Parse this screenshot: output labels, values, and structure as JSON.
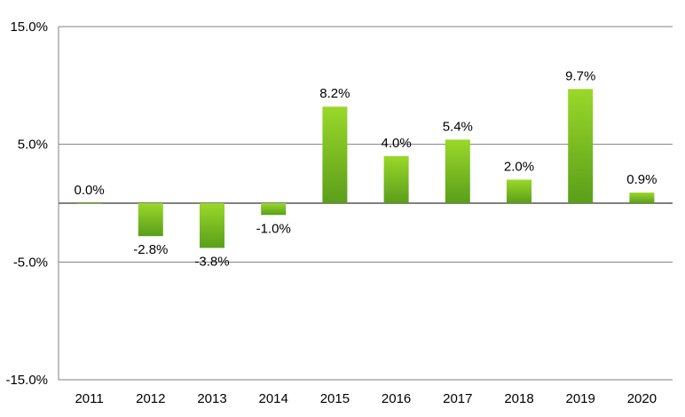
{
  "chart_data": {
    "type": "bar",
    "categories": [
      "2011",
      "2012",
      "2013",
      "2014",
      "2015",
      "2016",
      "2017",
      "2018",
      "2019",
      "2020"
    ],
    "values": [
      0.0,
      -2.8,
      -3.8,
      -1.0,
      8.2,
      4.0,
      5.4,
      2.0,
      9.7,
      0.9
    ],
    "data_labels": [
      "0.0%",
      "-2.8%",
      "-3.8%",
      "-1.0%",
      "8.2%",
      "4.0%",
      "5.4%",
      "2.0%",
      "9.7%",
      "0.9%"
    ],
    "y_ticks": [
      15,
      5,
      -5,
      -15
    ],
    "y_tick_labels": [
      "15.0%",
      "5.0%",
      "-5.0%",
      "-15.0%"
    ],
    "ylim": [
      -15,
      15
    ],
    "grid": true,
    "legend": "none",
    "colors": {
      "bar_top": "#9ad82a",
      "bar_bottom": "#5a9e1a",
      "grid": "#808080",
      "axis": "#808080"
    }
  }
}
